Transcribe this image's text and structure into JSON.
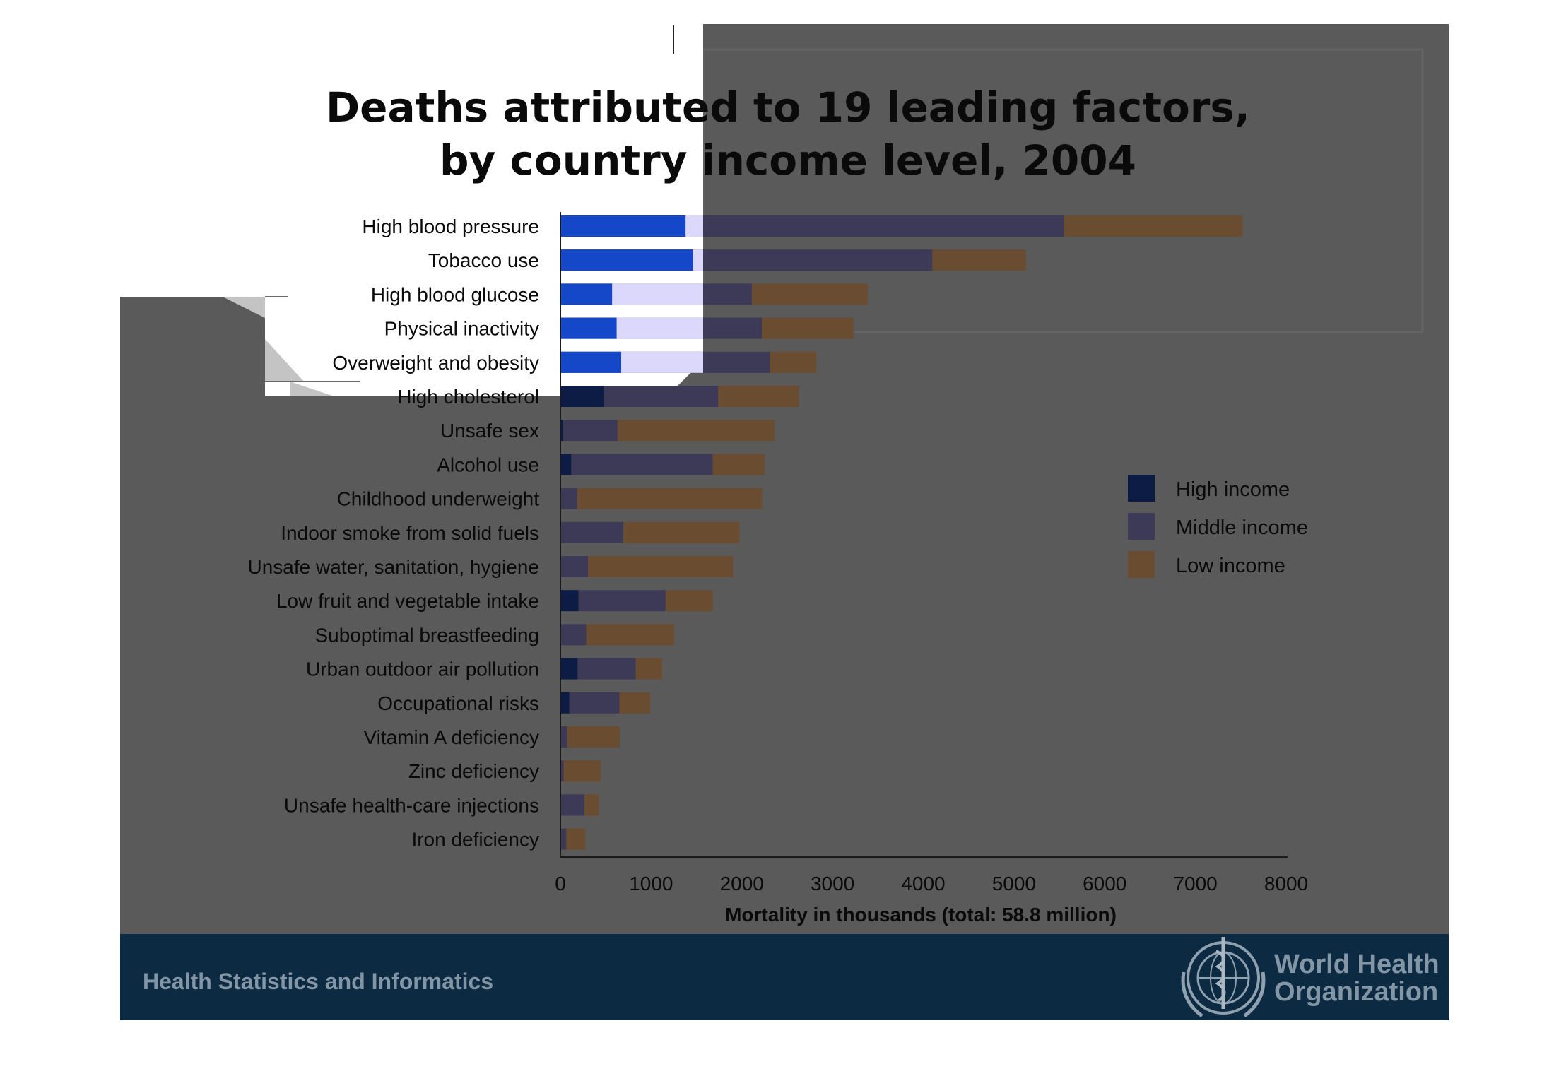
{
  "chart_data": {
    "type": "bar",
    "orientation": "horizontal",
    "stacked": true,
    "title": "Deaths attributed to 19 leading factors, by country income level, 2004",
    "title_lines": [
      "Deaths attributed to 19 leading factors,",
      "by country income level, 2004"
    ],
    "xlabel": "Mortality in thousands (total: 58.8 million)",
    "ylabel": "",
    "xlim": [
      0,
      8000
    ],
    "xticks": [
      0,
      1000,
      2000,
      3000,
      4000,
      5000,
      6000,
      7000,
      8000
    ],
    "grid": false,
    "legend_position": "right",
    "categories": [
      "High blood pressure",
      "Tobacco use",
      "High blood glucose",
      "Physical inactivity",
      "Overweight and obesity",
      "High cholesterol",
      "Unsafe sex",
      "Alcohol use",
      "Childhood underweight",
      "Indoor smoke from solid fuels",
      "Unsafe water, sanitation, hygiene",
      "Low fruit and vegetable intake",
      "Suboptimal breastfeeding",
      "Urban outdoor air pollution",
      "Occupational risks",
      "Vitamin A deficiency",
      "Zinc deficiency",
      "Unsafe health-care injections",
      "Iron deficiency"
    ],
    "series": [
      {
        "name": "High income",
        "color": "#0e2a87",
        "values": [
          1380,
          1460,
          570,
          620,
          670,
          480,
          30,
          120,
          5,
          5,
          5,
          200,
          5,
          190,
          100,
          5,
          5,
          5,
          5
        ]
      },
      {
        "name": "Middle income",
        "color": "#8a82f2",
        "values": [
          4170,
          2640,
          1540,
          1600,
          1640,
          1260,
          600,
          1560,
          180,
          690,
          300,
          960,
          280,
          640,
          550,
          70,
          30,
          260,
          60
        ]
      },
      {
        "name": "Low income",
        "color": "#b0834a",
        "values": [
          1970,
          1030,
          1280,
          1010,
          510,
          890,
          1730,
          570,
          2040,
          1280,
          1600,
          520,
          970,
          290,
          340,
          580,
          410,
          160,
          210
        ]
      }
    ]
  },
  "footer": {
    "left_text": "Health Statistics and Informatics",
    "org_name_line1": "World Health",
    "org_name_line2": "Organization"
  },
  "colors": {
    "slide_gray": "#5a5a5a",
    "footer_band": "#0d2a43",
    "reveal_white": "#ffffff",
    "highlight_lavender": "#dcd8fb"
  }
}
